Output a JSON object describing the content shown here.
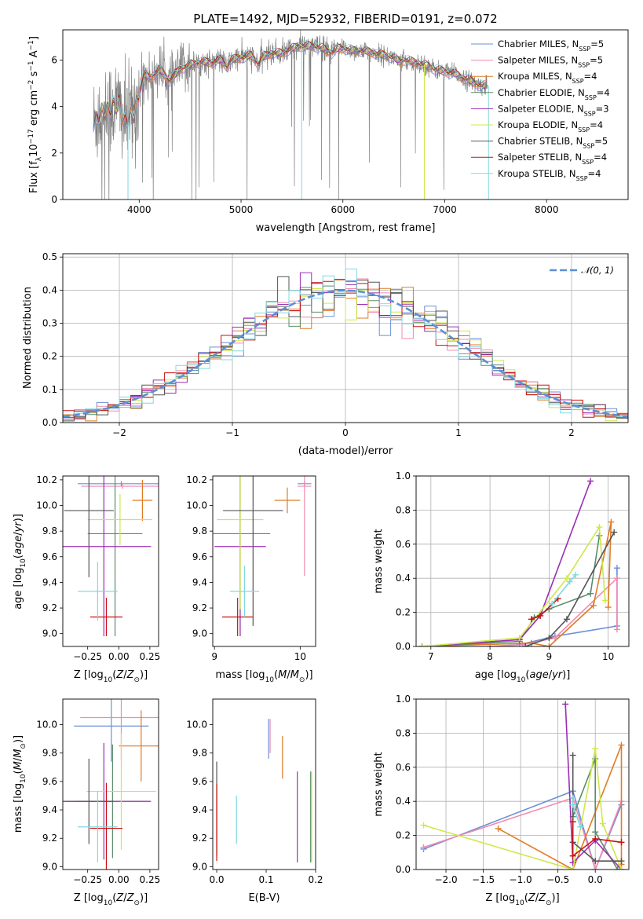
{
  "title": "PLATE=1492, MJD=52932, FIBERID=0191, z=0.072",
  "colors": {
    "Chabrier MILES": "#6a8fd8",
    "Salpeter MILES": "#f28ab0",
    "Kroupa MILES": "#e07b25",
    "Chabrier ELODIE": "#5b8c6b",
    "Salpeter ELODIE": "#9b2db5",
    "Kroupa ELODIE": "#cde84a",
    "Chabrier STELIB": "#555555",
    "Salpeter STELIB": "#cc1010",
    "Kroupa STELIB": "#80d8e0",
    "data": "#808080",
    "normal": "#5b8fd6"
  },
  "chart_data": [
    {
      "type": "line",
      "panel": "spectrum",
      "xlabel": "wavelength [Angstrom, rest frame]",
      "ylabel": "Flux [f_λ10^-17 erg cm^-2 s^-1 A^-1]",
      "xlim": [
        3250,
        8800
      ],
      "ylim": [
        0,
        7.3
      ],
      "xticks": [
        4000,
        5000,
        6000,
        7000,
        8000
      ],
      "yticks": [
        0,
        2,
        4,
        6
      ],
      "legend_location": "upper right",
      "legend": [
        {
          "label": "Chabrier MILES, N",
          "sub": "SSP",
          "tail": "=5",
          "color": "#6a8fd8"
        },
        {
          "label": "Salpeter MILES, N",
          "sub": "SSP",
          "tail": "=5",
          "color": "#f28ab0"
        },
        {
          "label": "Kroupa MILES, N",
          "sub": "SSP",
          "tail": "=4",
          "color": "#e07b25"
        },
        {
          "label": "Chabrier ELODIE, N",
          "sub": "SSP",
          "tail": "=4",
          "color": "#5b8c6b"
        },
        {
          "label": "Salpeter ELODIE, N",
          "sub": "SSP",
          "tail": "=3",
          "color": "#9b2db5"
        },
        {
          "label": "Kroupa ELODIE, N",
          "sub": "SSP",
          "tail": "=4",
          "color": "#cde84a"
        },
        {
          "label": "Chabrier STELIB, N",
          "sub": "SSP",
          "tail": "=5",
          "color": "#555555"
        },
        {
          "label": "Salpeter STELIB, N",
          "sub": "SSP",
          "tail": "=4",
          "color": "#cc1010"
        },
        {
          "label": "Kroupa STELIB, N",
          "sub": "SSP",
          "tail": "=4",
          "color": "#80d8e0"
        }
      ],
      "continuum": [
        [
          3550,
          3.3
        ],
        [
          3600,
          3.6
        ],
        [
          3700,
          3.9
        ],
        [
          3800,
          4.1
        ],
        [
          3850,
          3.4
        ],
        [
          3950,
          3.7
        ],
        [
          4000,
          4.6
        ],
        [
          4050,
          5.4
        ],
        [
          4100,
          5.2
        ],
        [
          4200,
          5.6
        ],
        [
          4300,
          5.1
        ],
        [
          4400,
          5.6
        ],
        [
          4500,
          5.8
        ],
        [
          4600,
          5.9
        ],
        [
          4700,
          5.9
        ],
        [
          4800,
          6.0
        ],
        [
          4862,
          5.7
        ],
        [
          4900,
          6.0
        ],
        [
          5000,
          6.1
        ],
        [
          5100,
          6.2
        ],
        [
          5175,
          5.8
        ],
        [
          5200,
          6.1
        ],
        [
          5300,
          6.3
        ],
        [
          5400,
          6.3
        ],
        [
          5500,
          6.5
        ],
        [
          5600,
          6.6
        ],
        [
          5700,
          6.6
        ],
        [
          5800,
          6.5
        ],
        [
          5893,
          6.3
        ],
        [
          5950,
          6.5
        ],
        [
          6000,
          6.5
        ],
        [
          6100,
          6.4
        ],
        [
          6200,
          6.4
        ],
        [
          6300,
          6.3
        ],
        [
          6400,
          6.2
        ],
        [
          6500,
          6.1
        ],
        [
          6563,
          5.9
        ],
        [
          6600,
          6.0
        ],
        [
          6700,
          5.9
        ],
        [
          6800,
          5.8
        ],
        [
          6900,
          5.6
        ],
        [
          7000,
          5.5
        ],
        [
          7100,
          5.4
        ],
        [
          7200,
          5.2
        ],
        [
          7300,
          5.0
        ],
        [
          7350,
          4.9
        ]
      ],
      "model_drops": [
        [
          3890,
          0
        ],
        [
          5595,
          0
        ],
        [
          6800,
          0
        ],
        [
          7430,
          0
        ]
      ]
    },
    {
      "type": "bar",
      "panel": "residual-histogram",
      "xlabel": "(data-model)/error",
      "ylabel": "Normed distribution",
      "xlim": [
        -2.5,
        2.5
      ],
      "ylim": [
        0,
        0.51
      ],
      "xticks": [
        -2,
        -1,
        0,
        1,
        2
      ],
      "yticks": [
        0.0,
        0.1,
        0.2,
        0.3,
        0.4,
        0.5
      ],
      "bin_width": 0.1,
      "normal_legend": "𝒩(0, 1)",
      "legend_location": "upper right"
    },
    {
      "type": "scatter",
      "panel": "age-vs-Z",
      "xlabel": "Z [log10(Z/Z☉)]",
      "ylabel": "age [log10(age/yr)]",
      "xlim": [
        -0.45,
        0.32
      ],
      "ylim": [
        8.9,
        10.23
      ],
      "xticks": [
        -0.25,
        0.0,
        0.25
      ],
      "yticks": [
        9.0,
        9.2,
        9.4,
        9.6,
        9.8,
        10.0,
        10.2
      ],
      "points": [
        {
          "model": "Chabrier MILES",
          "x": 0.02,
          "xerr": 0.35,
          "y": 10.17,
          "yerr": 0.02
        },
        {
          "model": "Salpeter MILES",
          "x": 0.03,
          "xerr": 0.33,
          "y": 10.15,
          "yerr": 0.02
        },
        {
          "model": "Kroupa MILES",
          "x": 0.19,
          "xerr": 0.08,
          "y": 10.04,
          "yerr": 0.16
        },
        {
          "model": "Chabrier ELODIE",
          "x": -0.03,
          "xerr": 0.22,
          "y": 9.78,
          "yerr": 0.8
        },
        {
          "model": "Salpeter ELODIE",
          "x": -0.12,
          "xerr": 0.38,
          "y": 9.68,
          "yerr": 0.7
        },
        {
          "model": "Kroupa ELODIE",
          "x": 0.01,
          "xerr": 0.26,
          "y": 9.89,
          "yerr": 0.2
        },
        {
          "model": "Chabrier STELIB",
          "x": -0.24,
          "xerr": 0.2,
          "y": 9.96,
          "yerr": 0.52
        },
        {
          "model": "Salpeter STELIB",
          "x": -0.1,
          "xerr": 0.13,
          "y": 9.13,
          "yerr": 0.15
        },
        {
          "model": "Kroupa STELIB",
          "x": -0.17,
          "xerr": 0.16,
          "y": 9.33,
          "yerr": 0.23
        }
      ]
    },
    {
      "type": "scatter",
      "panel": "age-vs-mass",
      "xlabel": "mass [log10(M/M☉)]",
      "ylabel": "",
      "xlim": [
        8.98,
        10.18
      ],
      "ylim": [
        8.9,
        10.23
      ],
      "xticks": [
        9,
        10
      ],
      "yticks": [
        9.0,
        9.2,
        9.4,
        9.6,
        9.8,
        10.0,
        10.2
      ],
      "points": [
        {
          "model": "Chabrier MILES",
          "x": 10.05,
          "xerr": 0.08,
          "y": 10.17,
          "yerr": 0.02
        },
        {
          "model": "Salpeter MILES",
          "x": 10.05,
          "xerr": 0.08,
          "y": 10.15,
          "yerr": 0.7
        },
        {
          "model": "Kroupa MILES",
          "x": 9.85,
          "xerr": 0.15,
          "y": 10.04,
          "yerr": 0.1
        },
        {
          "model": "Chabrier ELODIE",
          "x": 9.3,
          "xerr": 0.35,
          "y": 9.78,
          "yerr": 0.8
        },
        {
          "model": "Salpeter ELODIE",
          "x": 9.3,
          "xerr": 0.3,
          "y": 9.68,
          "yerr": 0.7
        },
        {
          "model": "Kroupa ELODIE",
          "x": 9.3,
          "xerr": 0.27,
          "y": 9.89,
          "yerr": 0.7
        },
        {
          "model": "Chabrier STELIB",
          "x": 9.45,
          "xerr": 0.35,
          "y": 9.96,
          "yerr": 0.9
        },
        {
          "model": "Salpeter STELIB",
          "x": 9.27,
          "xerr": 0.18,
          "y": 9.13,
          "yerr": 0.15
        },
        {
          "model": "Kroupa STELIB",
          "x": 9.35,
          "xerr": 0.17,
          "y": 9.33,
          "yerr": 0.2
        }
      ]
    },
    {
      "type": "line",
      "panel": "mass-weight-vs-age",
      "xlabel": "age [log10(age/yr)]",
      "ylabel": "mass weight",
      "xlim": [
        6.75,
        10.35
      ],
      "ylim": [
        0,
        1.0
      ],
      "xticks": [
        7,
        8,
        9,
        10
      ],
      "yticks": [
        0.0,
        0.2,
        0.4,
        0.6,
        0.8,
        1.0
      ],
      "series": [
        {
          "model": "Chabrier MILES",
          "points": [
            [
              8.0,
              0.0
            ],
            [
              8.5,
              0.01
            ],
            [
              9.1,
              0.06
            ],
            [
              10.15,
              0.12
            ],
            [
              10.15,
              0.46
            ]
          ]
        },
        {
          "model": "Salpeter MILES",
          "points": [
            [
              8.0,
              0.0
            ],
            [
              8.55,
              0.01
            ],
            [
              9.1,
              0.05
            ],
            [
              10.15,
              0.4
            ],
            [
              10.15,
              0.1
            ]
          ]
        },
        {
          "model": "Kroupa MILES",
          "points": [
            [
              6.85,
              0.0
            ],
            [
              8.7,
              0.02
            ],
            [
              9.0,
              0.0
            ],
            [
              9.75,
              0.24
            ],
            [
              10.05,
              0.73
            ],
            [
              10.0,
              0.23
            ]
          ]
        },
        {
          "model": "Chabrier ELODIE",
          "points": [
            [
              6.85,
              0.0
            ],
            [
              8.5,
              0.03
            ],
            [
              8.75,
              0.17
            ],
            [
              9.0,
              0.22
            ],
            [
              9.7,
              0.31
            ],
            [
              9.85,
              0.65
            ]
          ]
        },
        {
          "model": "Salpeter ELODIE",
          "points": [
            [
              6.85,
              0.0
            ],
            [
              8.5,
              0.04
            ],
            [
              8.85,
              0.18
            ],
            [
              9.7,
              0.97
            ]
          ]
        },
        {
          "model": "Kroupa ELODIE",
          "points": [
            [
              6.85,
              0.0
            ],
            [
              8.5,
              0.05
            ],
            [
              9.3,
              0.4
            ],
            [
              9.85,
              0.7
            ],
            [
              9.95,
              0.27
            ]
          ]
        },
        {
          "model": "Chabrier STELIB",
          "points": [
            [
              8.6,
              0.0
            ],
            [
              9.0,
              0.05
            ],
            [
              9.3,
              0.16
            ],
            [
              10.1,
              0.67
            ]
          ]
        },
        {
          "model": "Salpeter STELIB",
          "points": [
            [
              8.7,
              0.16
            ],
            [
              8.85,
              0.18
            ],
            [
              9.15,
              0.28
            ]
          ]
        },
        {
          "model": "Kroupa STELIB",
          "points": [
            [
              9.05,
              0.25
            ],
            [
              9.35,
              0.38
            ],
            [
              9.45,
              0.42
            ]
          ]
        }
      ]
    },
    {
      "type": "scatter",
      "panel": "mass-vs-Z",
      "xlabel": "Z [log10(Z/Z☉)]",
      "ylabel": "mass [log10(M/M☉)]",
      "xlim": [
        -0.45,
        0.32
      ],
      "ylim": [
        8.98,
        10.18
      ],
      "xticks": [
        -0.25,
        0.0,
        0.25
      ],
      "yticks": [
        9.0,
        9.2,
        9.4,
        9.6,
        9.8,
        10.0
      ],
      "points": [
        {
          "model": "Chabrier MILES",
          "x": -0.06,
          "xerr": 0.3,
          "y": 9.99,
          "yerr": 0.25
        },
        {
          "model": "Salpeter MILES",
          "x": 0.02,
          "xerr": 0.33,
          "y": 10.05,
          "yerr": 0.3
        },
        {
          "model": "Kroupa MILES",
          "x": 0.18,
          "xerr": 0.18,
          "y": 9.85,
          "yerr": 0.25
        },
        {
          "model": "Chabrier ELODIE",
          "x": -0.05,
          "xerr": 0.3,
          "y": 9.46,
          "yerr": 0.4
        },
        {
          "model": "Salpeter ELODIE",
          "x": -0.12,
          "xerr": 0.38,
          "y": 9.46,
          "yerr": 0.41
        },
        {
          "model": "Kroupa ELODIE",
          "x": 0.02,
          "xerr": 0.28,
          "y": 9.53,
          "yerr": 0.41
        },
        {
          "model": "Chabrier STELIB",
          "x": -0.24,
          "xerr": 0.2,
          "y": 9.46,
          "yerr": 0.3
        },
        {
          "model": "Salpeter STELIB",
          "x": -0.1,
          "xerr": 0.13,
          "y": 9.27,
          "yerr": 0.32
        },
        {
          "model": "Kroupa STELIB",
          "x": -0.17,
          "xerr": 0.16,
          "y": 9.28,
          "yerr": 0.25
        }
      ]
    },
    {
      "type": "scatter",
      "panel": "mass-vs-EBV",
      "xlabel": "E(B-V)",
      "ylabel": "",
      "xlim": [
        -0.008,
        0.2
      ],
      "ylim": [
        8.98,
        10.18
      ],
      "xticks": [
        0.0,
        0.1,
        0.2
      ],
      "yticks": [
        9.0,
        9.2,
        9.4,
        9.6,
        9.8,
        10.0
      ],
      "points": [
        {
          "model": "Chabrier MILES",
          "x": 0.105,
          "y": 9.9,
          "yerr": 0.14
        },
        {
          "model": "Salpeter MILES",
          "x": 0.108,
          "y": 9.92,
          "yerr": 0.12
        },
        {
          "model": "Kroupa MILES",
          "x": 0.133,
          "y": 9.77,
          "yerr": 0.15
        },
        {
          "model": "Chabrier ELODIE",
          "x": 0.19,
          "y": 9.35,
          "yerr": 0.32
        },
        {
          "model": "Salpeter ELODIE",
          "x": 0.163,
          "y": 9.35,
          "yerr": 0.32
        },
        {
          "model": "Kroupa ELODIE",
          "x": 0.192,
          "y": 9.35,
          "yerr": 0.32
        },
        {
          "model": "Chabrier STELIB",
          "x": 0.0,
          "y": 9.41,
          "yerr": 0.33
        },
        {
          "model": "Salpeter STELIB",
          "x": 0.0,
          "y": 9.31,
          "yerr": 0.27
        },
        {
          "model": "Kroupa STELIB",
          "x": 0.04,
          "y": 9.33,
          "yerr": 0.17
        }
      ]
    },
    {
      "type": "line",
      "panel": "mass-weight-vs-Z",
      "xlabel": "Z [log10(Z/Z☉)]",
      "ylabel": "mass weight",
      "xlim": [
        -2.4,
        0.45
      ],
      "ylim": [
        0,
        1.0
      ],
      "xticks": [
        -2.0,
        -1.5,
        -1.0,
        -0.5,
        0.0
      ],
      "yticks": [
        0.0,
        0.2,
        0.4,
        0.6,
        0.8,
        1.0
      ],
      "series": [
        {
          "model": "Chabrier MILES",
          "points": [
            [
              -2.3,
              0.12
            ],
            [
              -0.3,
              0.46
            ],
            [
              0.0,
              0.0
            ],
            [
              0.35,
              0.38
            ]
          ]
        },
        {
          "model": "Salpeter MILES",
          "points": [
            [
              -2.3,
              0.13
            ],
            [
              -0.3,
              0.42
            ],
            [
              0.0,
              0.0
            ],
            [
              0.35,
              0.4
            ]
          ]
        },
        {
          "model": "Kroupa MILES",
          "points": [
            [
              -1.3,
              0.24
            ],
            [
              -0.3,
              0.0
            ],
            [
              0.35,
              0.73
            ],
            [
              0.35,
              0.03
            ]
          ]
        },
        {
          "model": "Chabrier ELODIE",
          "points": [
            [
              -0.3,
              0.31
            ],
            [
              0.0,
              0.65
            ],
            [
              0.0,
              0.22
            ],
            [
              0.3,
              0.0
            ]
          ]
        },
        {
          "model": "Salpeter ELODIE",
          "points": [
            [
              -0.4,
              0.97
            ],
            [
              -0.3,
              0.04
            ],
            [
              0.0,
              0.17
            ],
            [
              0.35,
              0.0
            ]
          ]
        },
        {
          "model": "Kroupa ELODIE",
          "points": [
            [
              -2.3,
              0.26
            ],
            [
              -0.3,
              0.0
            ],
            [
              0.0,
              0.71
            ],
            [
              0.1,
              0.27
            ],
            [
              0.35,
              0.0
            ]
          ]
        },
        {
          "model": "Chabrier STELIB",
          "points": [
            [
              -0.3,
              0.67
            ],
            [
              -0.3,
              0.16
            ],
            [
              0.0,
              0.05
            ],
            [
              0.35,
              0.05
            ]
          ]
        },
        {
          "model": "Salpeter STELIB",
          "points": [
            [
              -0.3,
              0.28
            ],
            [
              -0.3,
              0.08
            ],
            [
              0.0,
              0.18
            ],
            [
              0.35,
              0.16
            ]
          ]
        },
        {
          "model": "Kroupa STELIB",
          "points": [
            [
              -0.3,
              0.42
            ],
            [
              -0.3,
              0.38
            ],
            [
              -0.2,
              0.25
            ]
          ]
        }
      ]
    }
  ]
}
